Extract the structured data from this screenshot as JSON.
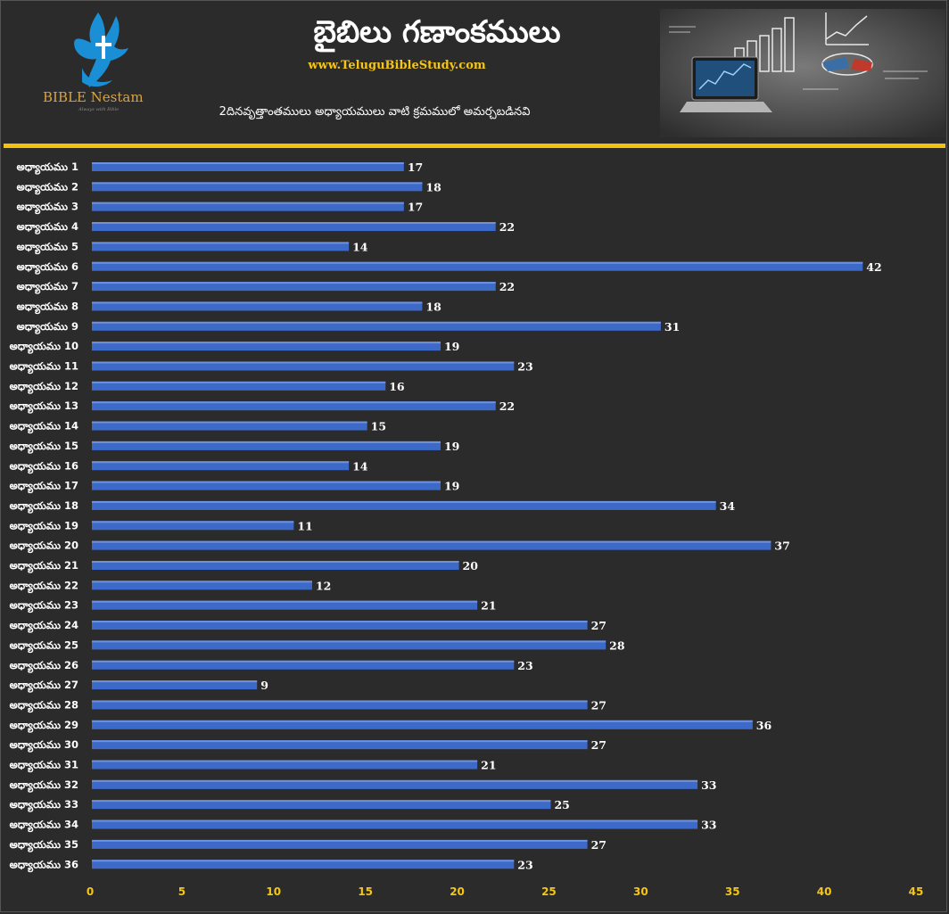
{
  "header": {
    "title": "బైబిలు గణాంకములు",
    "website": "www.TeluguBibleStudy.com",
    "subtitle": "2దినవృత్తాంతములు అధ్యాయములు వాటి క్రమములో అమర్చబడినవి",
    "logo": {
      "name": "BIBLE Nestam",
      "tagline": "Always with Bible"
    }
  },
  "colors": {
    "background": "#2b2b2b",
    "bar": "#3d6ac9",
    "accent_line": "#f2c20f",
    "tick_label": "#f5c518",
    "website": "#f5c518",
    "logo_text": "#d9a441",
    "logo_bird": "#1a8fd6"
  },
  "chart_data": {
    "type": "bar",
    "orientation": "horizontal",
    "categories": [
      "అధ్యాయము 1",
      "అధ్యాయము 2",
      "అధ్యాయము 3",
      "అధ్యాయము 4",
      "అధ్యాయము 5",
      "అధ్యాయము 6",
      "అధ్యాయము 7",
      "అధ్యాయము 8",
      "అధ్యాయము 9",
      "అధ్యాయము 10",
      "అధ్యాయము 11",
      "అధ్యాయము 12",
      "అధ్యాయము 13",
      "అధ్యాయము 14",
      "అధ్యాయము 15",
      "అధ్యాయము 16",
      "అధ్యాయము 17",
      "అధ్యాయము 18",
      "అధ్యాయము 19",
      "అధ్యాయము 20",
      "అధ్యాయము 21",
      "అధ్యాయము 22",
      "అధ్యాయము 23",
      "అధ్యాయము 24",
      "అధ్యాయము 25",
      "అధ్యాయము 26",
      "అధ్యాయము 27",
      "అధ్యాయము 28",
      "అధ్యాయము 29",
      "అధ్యాయము 30",
      "అధ్యాయము 31",
      "అధ్యాయము 32",
      "అధ్యాయము 33",
      "అధ్యాయము 34",
      "అధ్యాయము 35",
      "అధ్యాయము 36"
    ],
    "values": [
      17,
      18,
      17,
      22,
      14,
      42,
      22,
      18,
      31,
      19,
      23,
      16,
      22,
      15,
      19,
      14,
      19,
      34,
      11,
      37,
      20,
      12,
      21,
      27,
      28,
      23,
      9,
      27,
      36,
      27,
      21,
      33,
      25,
      33,
      27,
      23
    ],
    "xlim": [
      0,
      45
    ],
    "xticks": [
      0,
      5,
      10,
      15,
      20,
      25,
      30,
      35,
      40,
      45
    ],
    "data_labels": true,
    "grid": false,
    "legend": "none"
  }
}
